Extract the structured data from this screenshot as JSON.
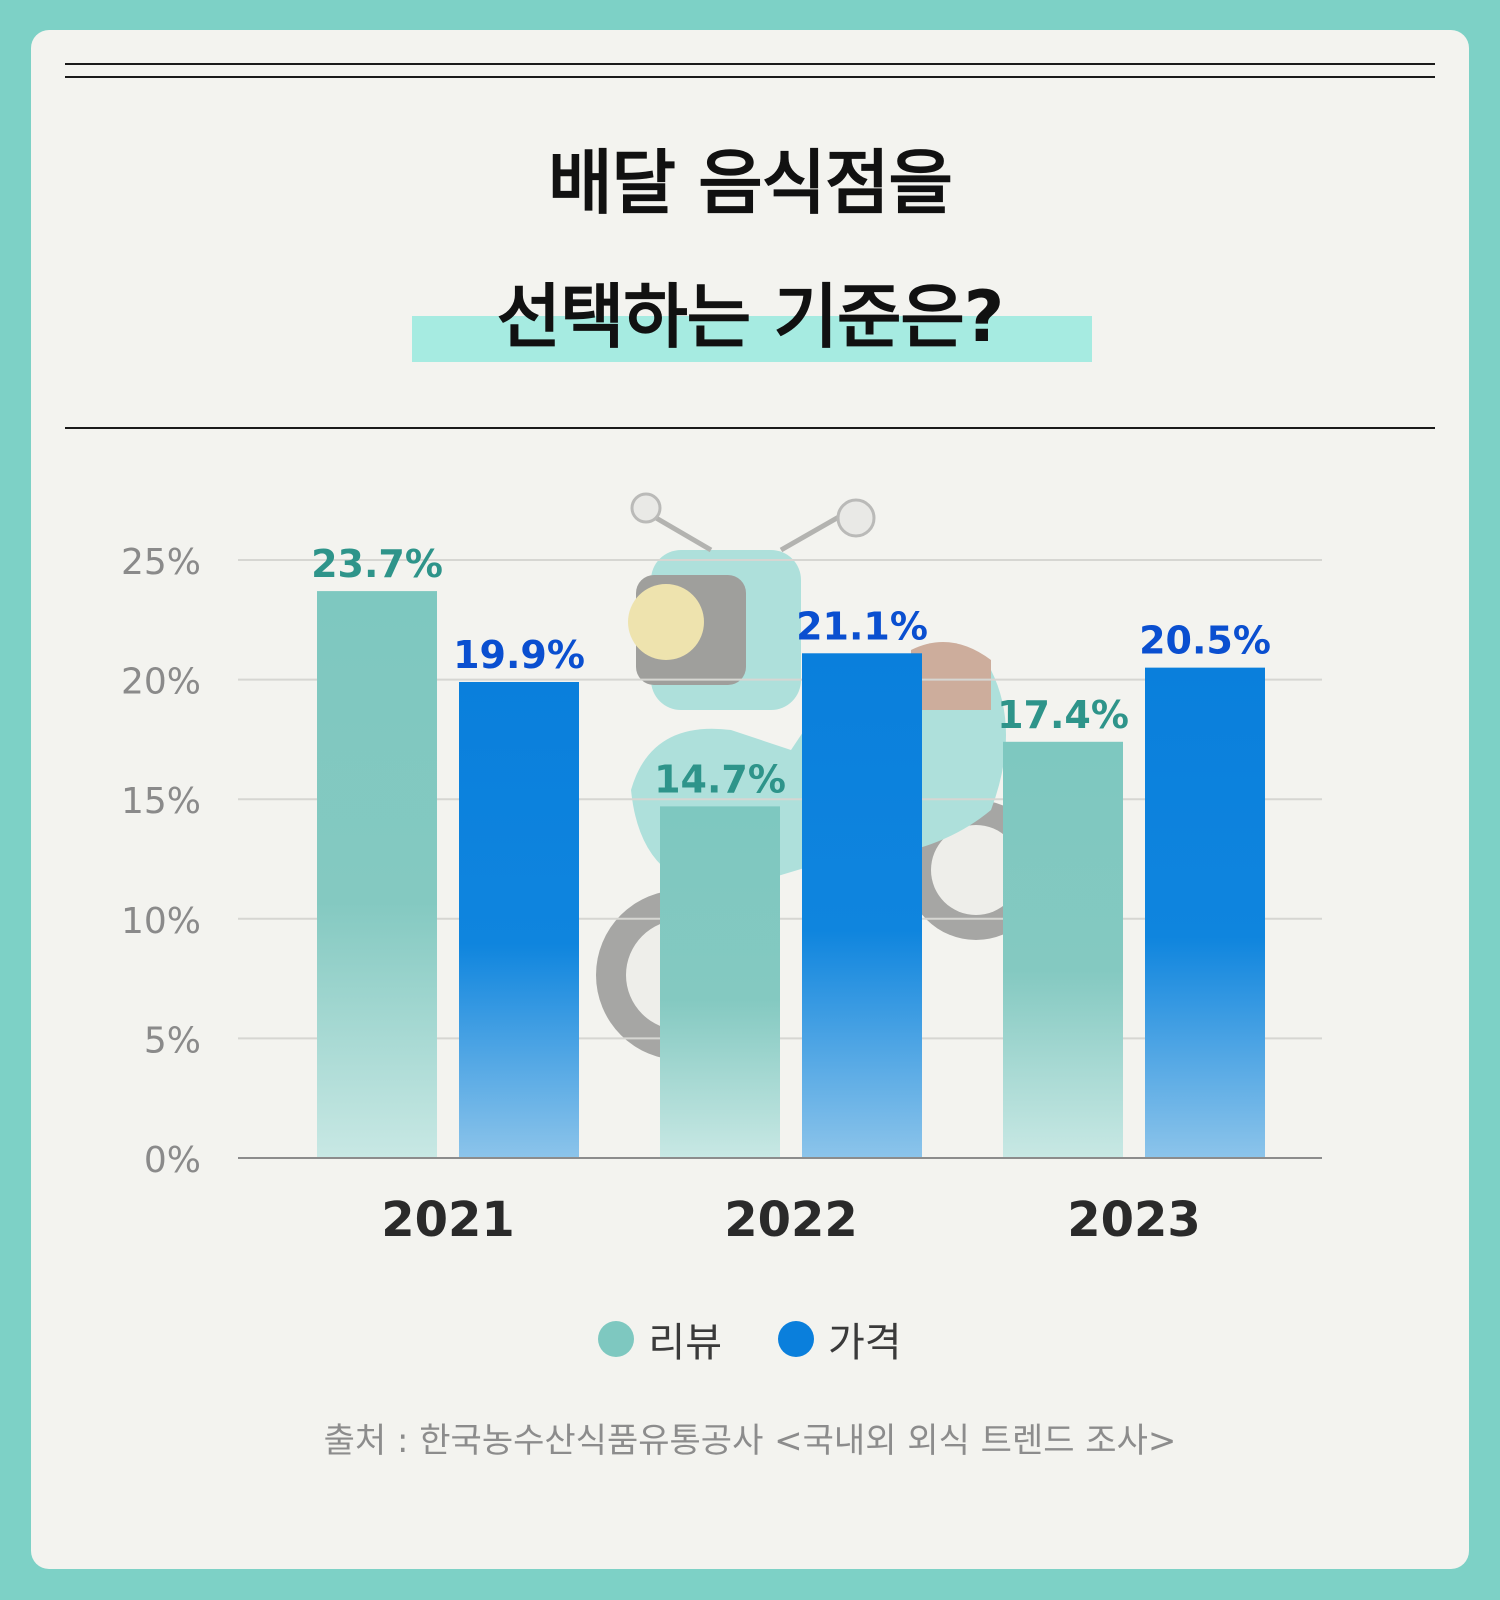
{
  "title_line1": "배달 음식점을",
  "title_line2": "선택하는 기준은?",
  "source": "출처 : 한국농수산식품유통공사 <국내외 외식 트렌드 조사>",
  "colors": {
    "background": "#7dd1c6",
    "card": "#f3f3ef",
    "highlight": "#a6ebe1",
    "series_review": "#7ec8c0",
    "series_price": "#0a7fdc",
    "label_review": "#2e948a",
    "label_price": "#0a4fd0"
  },
  "chart_data": {
    "type": "bar",
    "categories": [
      "2021",
      "2022",
      "2023"
    ],
    "series": [
      {
        "name": "리뷰",
        "values": [
          23.7,
          14.7,
          17.4
        ],
        "labels": [
          "23.7%",
          "14.7%",
          "17.4%"
        ]
      },
      {
        "name": "가격",
        "values": [
          19.9,
          21.1,
          20.5
        ],
        "labels": [
          "19.9%",
          "21.1%",
          "20.5%"
        ]
      }
    ],
    "yticks": [
      "0%",
      "5%",
      "10%",
      "15%",
      "20%",
      "25%"
    ],
    "ylim": [
      0,
      25
    ],
    "grid": true,
    "legend": "bottom-center"
  }
}
